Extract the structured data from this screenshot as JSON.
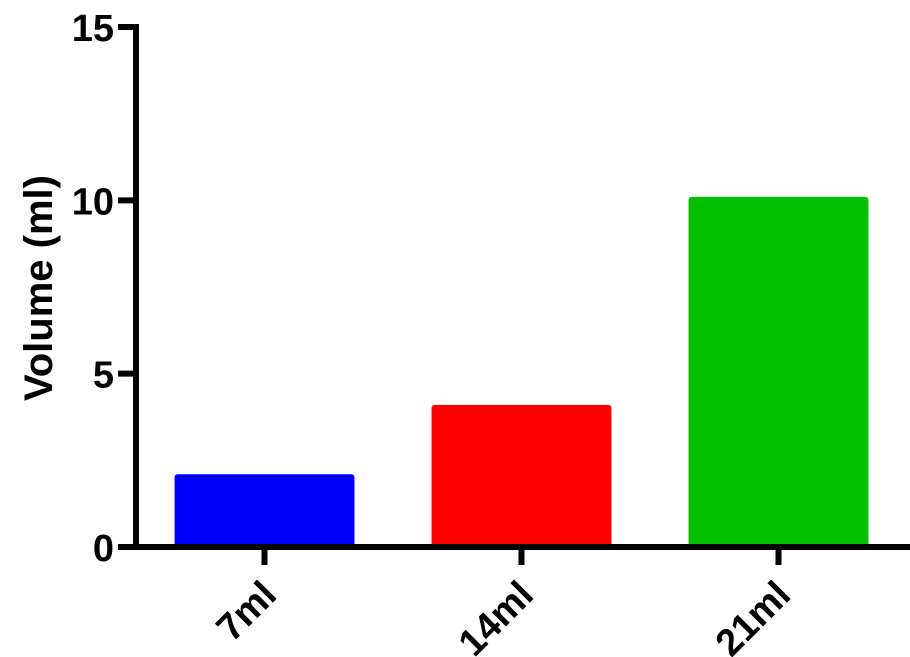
{
  "chart_data": {
    "type": "bar",
    "title": "",
    "xlabel": "",
    "ylabel": "Volume (ml)",
    "categories": [
      "7ml",
      "14ml",
      "21ml"
    ],
    "values": [
      2.1,
      4.1,
      10.1
    ],
    "colors": [
      "#0000FF",
      "#FF0000",
      "#00BF00"
    ],
    "ylim": [
      0,
      15
    ],
    "yticks": [
      "0",
      "5",
      "10",
      "15"
    ],
    "grid": false,
    "legend": "none"
  }
}
